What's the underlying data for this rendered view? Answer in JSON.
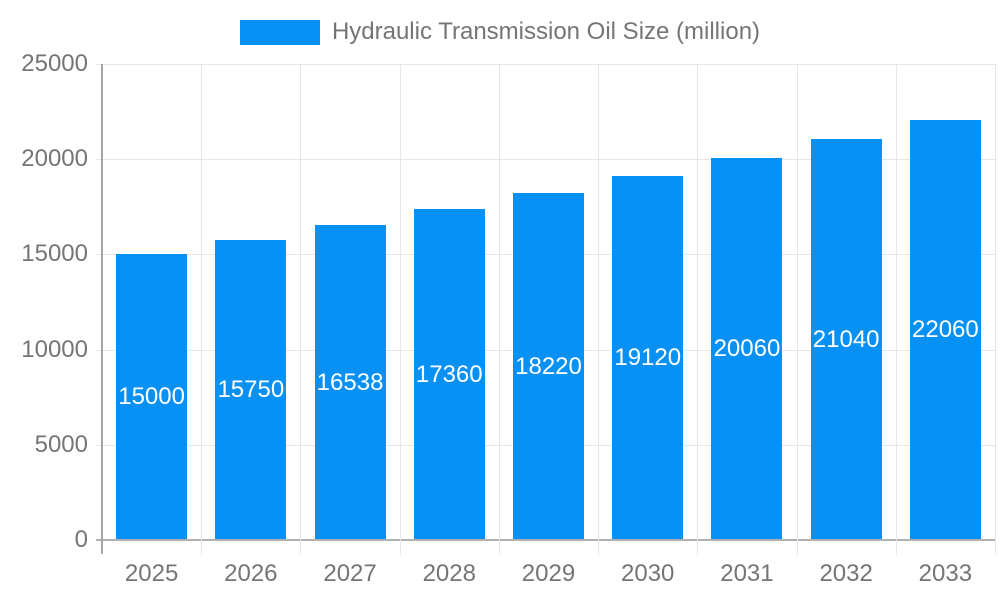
{
  "legend": {
    "label": "Hydraulic Transmission Oil Size (million)",
    "swatch_color": "#0891f5"
  },
  "chart_data": {
    "type": "bar",
    "title": "Hydraulic Transmission Oil Size (million)",
    "categories": [
      "2025",
      "2026",
      "2027",
      "2028",
      "2029",
      "2030",
      "2031",
      "2032",
      "2033"
    ],
    "values": [
      15000,
      15750,
      16538,
      17360,
      18220,
      19120,
      20060,
      21040,
      22060
    ],
    "xlabel": "",
    "ylabel": "",
    "ylim": [
      0,
      25000
    ],
    "yticks": [
      0,
      5000,
      10000,
      15000,
      20000,
      25000
    ],
    "grid": true,
    "legend_position": "top",
    "bar_labels_inside": true
  },
  "colors": {
    "bar": "#0891f5",
    "bar_label": "#ffffff",
    "axis_text": "#757575",
    "gridline": "#e6e6e6",
    "baseline": "#b0b0b0",
    "axis_line": "#a6a6a6",
    "background": "#ffffff"
  }
}
